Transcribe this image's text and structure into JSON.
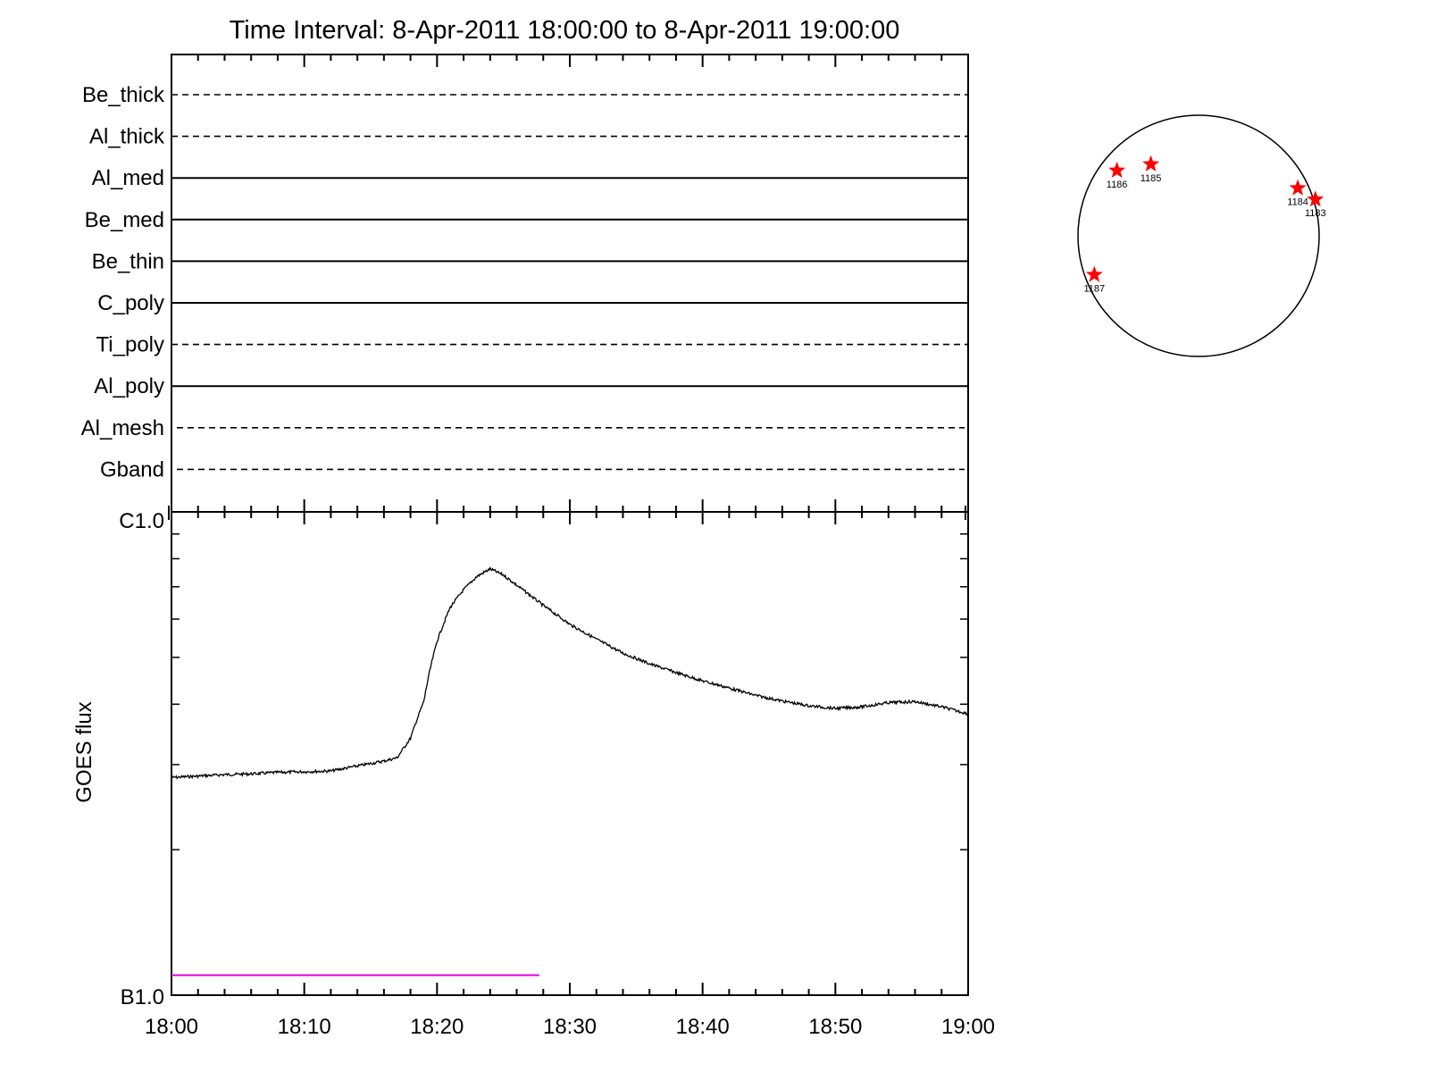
{
  "title": "Time Interval:  8-Apr-2011 18:00:00 to  8-Apr-2011 19:00:00",
  "chart_data": [
    {
      "type": "line",
      "panel": "coverage",
      "x_range": [
        "18:00",
        "19:00"
      ],
      "categories": [
        "Be_thick",
        "Al_thick",
        "Al_med",
        "Be_med",
        "Be_thin",
        "C_poly",
        "Ti_poly",
        "Al_poly",
        "Al_mesh",
        "Gband"
      ],
      "line_styles": [
        "dashed",
        "dashed",
        "solid",
        "solid",
        "solid",
        "solid",
        "dashed",
        "solid",
        "dashed",
        "dashed"
      ],
      "grid": false
    },
    {
      "type": "line",
      "panel": "goes",
      "ylabel": "GOES flux",
      "y_scale": "log",
      "ylim_labels": [
        "B1.0",
        "C1.0"
      ],
      "xlim": [
        "18:00",
        "19:00"
      ],
      "xticks": [
        "18:00",
        "18:10",
        "18:20",
        "18:30",
        "18:40",
        "18:50",
        "19:00"
      ],
      "series": [
        {
          "color": "#000000",
          "x": [
            "18:00",
            "18:02",
            "18:04",
            "18:06",
            "18:08",
            "18:10",
            "18:12",
            "18:14",
            "18:16",
            "18:17",
            "18:18",
            "18:19",
            "18:19.5",
            "18:20",
            "18:21",
            "18:22",
            "18:23",
            "18:24",
            "18:25",
            "18:26",
            "18:28",
            "18:30",
            "18:32",
            "18:34",
            "18:36",
            "18:38",
            "18:40",
            "18:42",
            "18:44",
            "18:46",
            "18:48",
            "18:50",
            "18:52",
            "18:54",
            "18:56",
            "18:58",
            "19:00"
          ],
          "values": [
            2.82,
            2.84,
            2.86,
            2.87,
            2.89,
            2.9,
            2.91,
            2.98,
            3.05,
            3.1,
            3.4,
            4.05,
            4.75,
            5.4,
            6.35,
            6.9,
            7.35,
            7.62,
            7.4,
            7.05,
            6.4,
            5.85,
            5.45,
            5.1,
            4.85,
            4.65,
            4.47,
            4.32,
            4.17,
            4.06,
            3.97,
            3.92,
            3.95,
            4.03,
            4.05,
            3.95,
            3.82
          ]
        },
        {
          "color": "#e100e1",
          "x": [
            "18:00",
            "18:27.7"
          ],
          "values": [
            1.1,
            1.1
          ]
        }
      ]
    },
    {
      "type": "scatter",
      "panel": "disk",
      "markers": [
        "star"
      ],
      "marker_color": "#ff0000",
      "regions": [
        {
          "label": "1186",
          "x": -650,
          "y": 520
        },
        {
          "label": "1185",
          "x": -380,
          "y": 570
        },
        {
          "label": "1184",
          "x": 790,
          "y": 380
        },
        {
          "label": "1183",
          "x": 930,
          "y": 290
        },
        {
          "label": "1187",
          "x": -830,
          "y": -310
        }
      ]
    }
  ]
}
